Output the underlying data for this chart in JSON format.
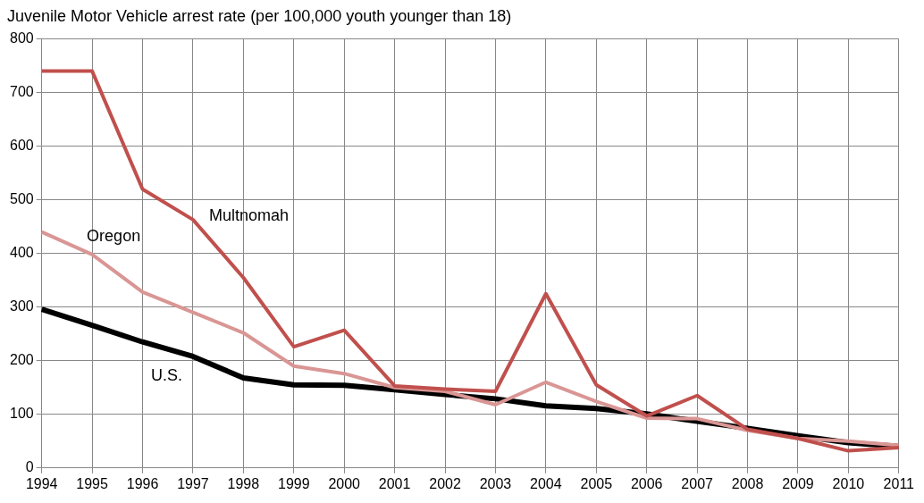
{
  "chart_data": {
    "type": "line",
    "title": "Juvenile Motor Vehicle arrest rate (per 100,000 youth younger than 18)",
    "categories": [
      "1994",
      "1995",
      "1996",
      "1997",
      "1998",
      "1999",
      "2000",
      "2001",
      "2002",
      "2003",
      "2004",
      "2005",
      "2006",
      "2007",
      "2008",
      "2009",
      "2010",
      "2011"
    ],
    "series": [
      {
        "name": "Multnomah",
        "color": "#c0504d",
        "values": [
          740,
          740,
          520,
          463,
          355,
          226,
          257,
          153,
          147,
          143,
          325,
          155,
          97,
          135,
          72,
          55,
          32,
          38
        ]
      },
      {
        "name": "Oregon",
        "color": "#d99694",
        "values": [
          440,
          398,
          328,
          290,
          252,
          190,
          176,
          150,
          143,
          118,
          160,
          124,
          93,
          92,
          70,
          55,
          50,
          42
        ]
      },
      {
        "name": "U.S.",
        "color": "#000000",
        "values": [
          296,
          266,
          235,
          208,
          168,
          155,
          154,
          146,
          137,
          129,
          116,
          111,
          101,
          87,
          74,
          60,
          47,
          40
        ]
      }
    ],
    "ylim": [
      0,
      800
    ],
    "yticks": [
      0,
      100,
      200,
      300,
      400,
      500,
      600,
      700,
      800
    ],
    "grid": true,
    "legend": false,
    "marker": "none",
    "line_style": "solid"
  }
}
